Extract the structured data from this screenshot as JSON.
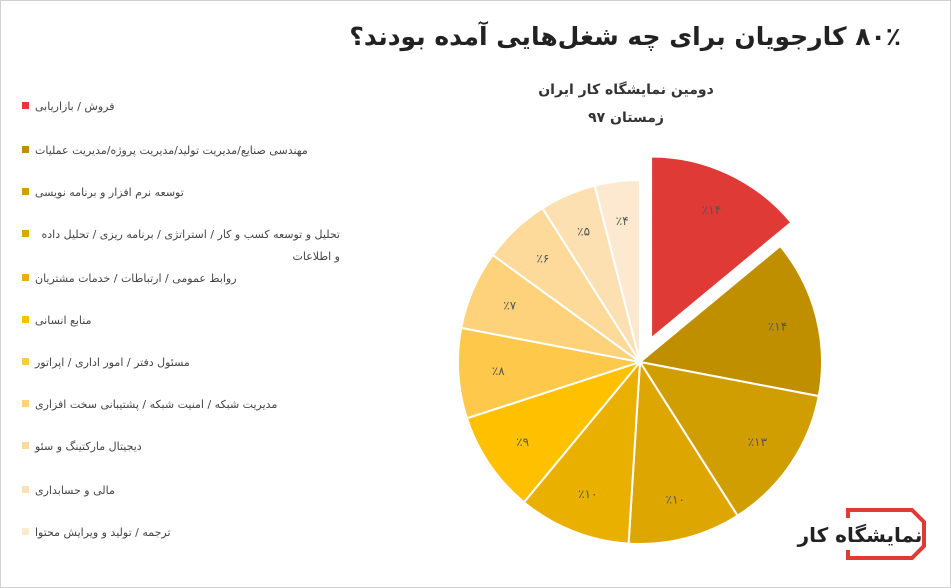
{
  "chart_data": {
    "type": "pie",
    "title": "۸۰٪ کارجویان برای چه شغل‌هایی آمده بودند؟",
    "subtitle": [
      "دومین نمایشگاه کار ایران",
      "زمستان ۹۷"
    ],
    "categories": [
      "فروش / بازاریابی",
      "مهندسی صنایع/مدیریت تولید/مدیریت پروژه/مدیریت عملیات",
      "توسعه نرم افزار و برنامه نویسی",
      "تحلیل و توسعه کسب و کار / استراتژی / برنامه ریزی / تحلیل داده و اطلاعات",
      "روابط عمومی / ارتباطات / خدمات مشتریان",
      "منابع انسانی",
      "مسئول دفتر / امور اداری / اپراتور",
      "مدیریت شبکه / امنیت شبکه / پشتیبانی سخت افزاری",
      "دیجیتال مارکتینگ و سئو",
      "مالی و حسابداری",
      "ترجمه / تولید و ویرایش محتوا"
    ],
    "values": [
      14,
      14,
      13,
      10,
      10,
      9,
      8,
      7,
      6,
      5,
      4
    ],
    "value_labels": [
      "٪۱۴",
      "٪۱۴",
      "٪۱۳",
      "٪۱۰",
      "٪۱۰",
      "٪۹",
      "٪۸",
      "٪۷",
      "٪۶",
      "٪۵",
      "٪۴"
    ],
    "colors": [
      "#e03a36",
      "#bf8f00",
      "#d09e00",
      "#dea600",
      "#e9b000",
      "#ffc000",
      "#fec84a",
      "#fdd27a",
      "#fdd99a",
      "#fde0b2",
      "#fde9cf"
    ],
    "logo": "نمایشگاه کار"
  }
}
